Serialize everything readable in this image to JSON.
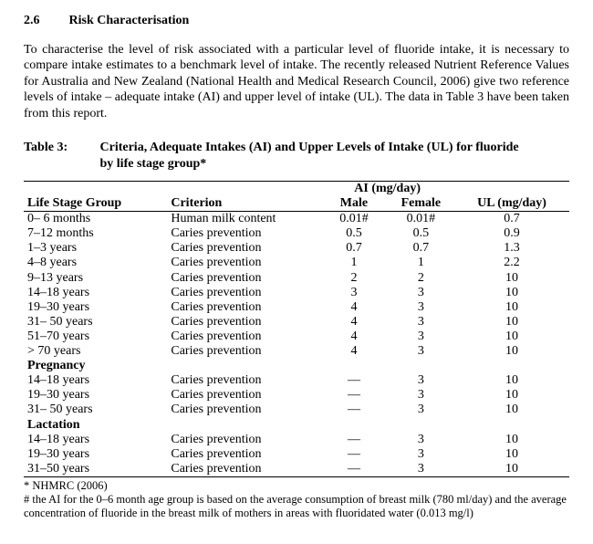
{
  "section": {
    "number": "2.6",
    "title": "Risk Characterisation"
  },
  "intro": "To characterise the level of risk associated with a particular level of fluoride intake, it is necessary to compare intake estimates to a benchmark level of intake. The recently released Nutrient Reference Values for Australia and New Zealand (National Health and Medical Research Council, 2006) give two reference levels of intake – adequate intake (AI) and upper level of intake (UL). The data in Table 3 have been taken from this report.",
  "table": {
    "label": "Table 3:",
    "caption": "Criteria, Adequate Intakes (AI) and Upper Levels of Intake (UL) for fluoride by life stage group*",
    "headers": {
      "lifestage": "Life Stage Group",
      "criterion": "Criterion",
      "ai": "AI (mg/day)",
      "male": "Male",
      "female": "Female",
      "ul": "UL (mg/day)"
    },
    "rows": [
      {
        "ls": "0– 6 months",
        "cr": "Human milk content",
        "m": "0.01#",
        "f": "0.01#",
        "ul": "0.7"
      },
      {
        "ls": "7–12 months",
        "cr": "Caries prevention",
        "m": "0.5",
        "f": "0.5",
        "ul": "0.9"
      },
      {
        "ls": "1–3 years",
        "cr": "Caries prevention",
        "m": "0.7",
        "f": "0.7",
        "ul": "1.3"
      },
      {
        "ls": "4–8 years",
        "cr": "Caries prevention",
        "m": "1",
        "f": "1",
        "ul": "2.2"
      },
      {
        "ls": "9–13 years",
        "cr": "Caries prevention",
        "m": "2",
        "f": "2",
        "ul": "10"
      },
      {
        "ls": "14–18 years",
        "cr": "Caries prevention",
        "m": "3",
        "f": "3",
        "ul": "10"
      },
      {
        "ls": "19–30 years",
        "cr": "Caries prevention",
        "m": "4",
        "f": "3",
        "ul": "10"
      },
      {
        "ls": "31– 50 years",
        "cr": "Caries prevention",
        "m": "4",
        "f": "3",
        "ul": "10"
      },
      {
        "ls": "51–70 years",
        "cr": "Caries prevention",
        "m": "4",
        "f": "3",
        "ul": "10"
      },
      {
        "ls": "> 70 years",
        "cr": "Caries prevention",
        "m": "4",
        "f": "3",
        "ul": "10"
      }
    ],
    "pregnancy_label": "Pregnancy",
    "pregnancy_rows": [
      {
        "ls": "14–18 years",
        "cr": "Caries prevention",
        "m": "—",
        "f": "3",
        "ul": "10"
      },
      {
        "ls": "19–30 years",
        "cr": "Caries prevention",
        "m": "—",
        "f": "3",
        "ul": "10"
      },
      {
        "ls": "31– 50 years",
        "cr": "Caries prevention",
        "m": "—",
        "f": "3",
        "ul": "10"
      }
    ],
    "lactation_label": "Lactation",
    "lactation_rows": [
      {
        "ls": "14–18 years",
        "cr": "Caries prevention",
        "m": "—",
        "f": "3",
        "ul": "10"
      },
      {
        "ls": "19–30 years",
        "cr": "Caries prevention",
        "m": "—",
        "f": "3",
        "ul": "10"
      },
      {
        "ls": "31–50 years",
        "cr": "Caries prevention",
        "m": "—",
        "f": "3",
        "ul": "10"
      }
    ]
  },
  "footnotes": {
    "a": "* NHMRC (2006)",
    "b": "# the AI for the 0–6 month age group is based on the average consumption of breast milk (780 ml/day) and the average concentration of fluoride in the breast milk of mothers in areas with fluoridated water (0.013 mg/l)"
  }
}
